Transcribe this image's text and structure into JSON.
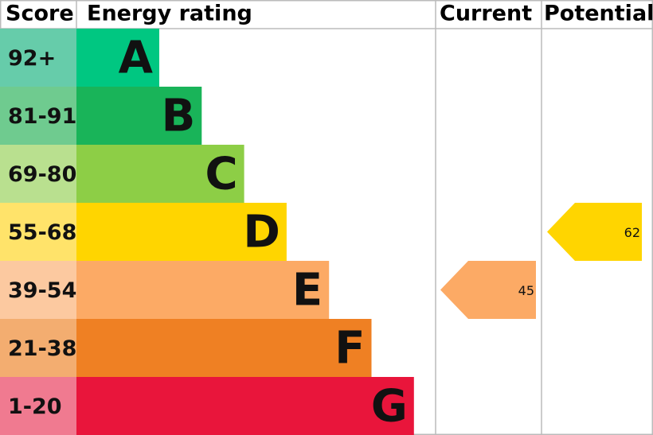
{
  "header": {
    "score": "Score",
    "rating": "Energy rating",
    "current": "Current",
    "potential": "Potential"
  },
  "bands": [
    {
      "score": "92+",
      "letter": "A"
    },
    {
      "score": "81-91",
      "letter": "B"
    },
    {
      "score": "69-80",
      "letter": "C"
    },
    {
      "score": "55-68",
      "letter": "D"
    },
    {
      "score": "39-54",
      "letter": "E"
    },
    {
      "score": "21-38",
      "letter": "F"
    },
    {
      "score": "1-20",
      "letter": "G"
    }
  ],
  "current": {
    "value": 45
  },
  "potential": {
    "value": 62
  }
}
